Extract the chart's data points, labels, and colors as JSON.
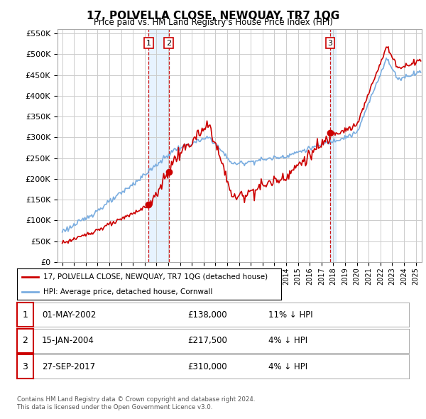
{
  "title": "17, POLVELLA CLOSE, NEWQUAY, TR7 1QG",
  "subtitle": "Price paid vs. HM Land Registry's House Price Index (HPI)",
  "legend_line1": "17, POLVELLA CLOSE, NEWQUAY, TR7 1QG (detached house)",
  "legend_line2": "HPI: Average price, detached house, Cornwall",
  "footer1": "Contains HM Land Registry data © Crown copyright and database right 2024.",
  "footer2": "This data is licensed under the Open Government Licence v3.0.",
  "sale_dates_display": [
    "01-MAY-2002",
    "15-JAN-2004",
    "27-SEP-2017"
  ],
  "sale_prices_display": [
    "£138,000",
    "£217,500",
    "£310,000"
  ],
  "sale_labels": [
    "1",
    "2",
    "3"
  ],
  "sale_hpi_diff": [
    "11% ↓ HPI",
    "4% ↓ HPI",
    "4% ↓ HPI"
  ],
  "vline_x": [
    2002.33,
    2004.04,
    2017.74
  ],
  "sale_prices": [
    138000,
    217500,
    310000
  ],
  "red_line_color": "#cc0000",
  "blue_line_color": "#7aade0",
  "vline_fill_color": "#ddeeff",
  "background_color": "#ffffff",
  "grid_color": "#cccccc",
  "ylim": [
    0,
    560000
  ],
  "xlim": [
    1994.6,
    2025.5
  ],
  "ytick_step": 50000
}
